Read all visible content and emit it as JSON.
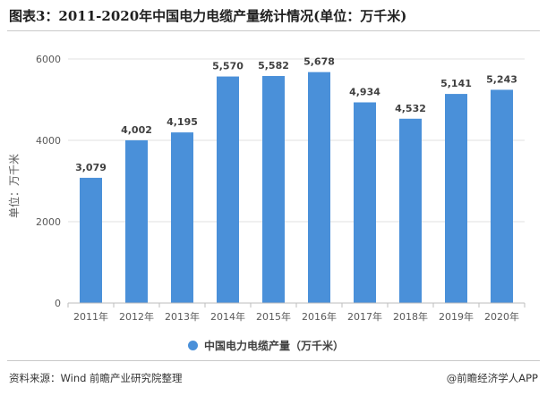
{
  "title": "图表3：2011-2020年中国电力电缆产量统计情况(单位：万千米)",
  "source": "资料来源：Wind 前瞻产业研究院整理",
  "brand": "@前瞻经济学人APP",
  "colors": {
    "bar": "#4a90d9"
  },
  "chart_data": {
    "type": "bar",
    "categories": [
      "2011年",
      "2012年",
      "2013年",
      "2014年",
      "2015年",
      "2016年",
      "2017年",
      "2018年",
      "2019年",
      "2020年"
    ],
    "series": [
      {
        "name": "中国电力电缆产量（万千米）",
        "values": [
          3079,
          4002,
          4195,
          5570,
          5582,
          5678,
          4934,
          4532,
          5141,
          5243
        ],
        "labels": [
          "3,079",
          "4,002",
          "4,195",
          "5,570",
          "5,582",
          "5,678",
          "4,934",
          "4,532",
          "5,141",
          "5,243"
        ]
      }
    ],
    "ylabel": "单位：万千米",
    "ylim": [
      0,
      6000
    ],
    "yticks": [
      0,
      2000,
      4000,
      6000
    ],
    "ytick_labels": [
      "0",
      "2000",
      "4000",
      "6000"
    ],
    "grid": true,
    "legend_position": "bottom"
  }
}
